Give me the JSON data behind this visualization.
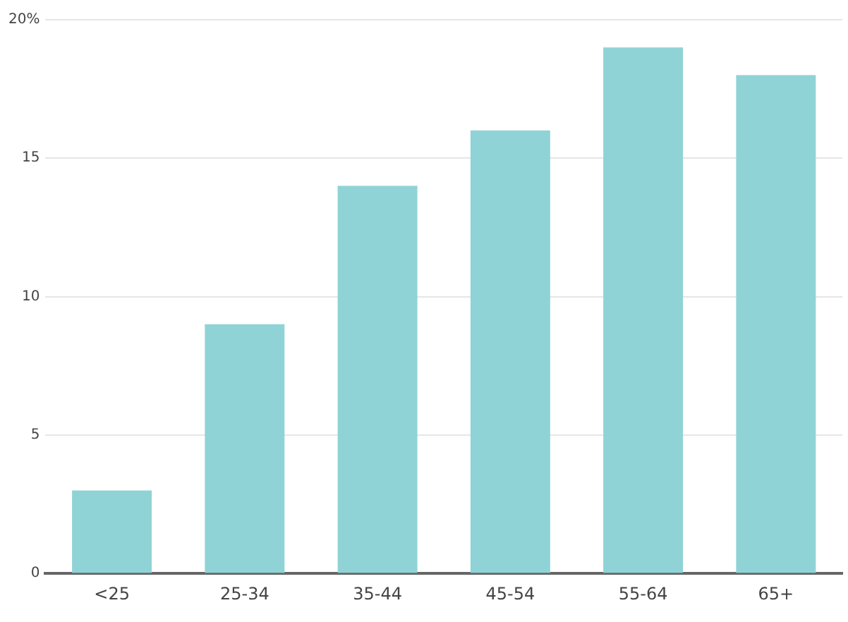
{
  "chart_data": {
    "type": "bar",
    "categories": [
      "<25",
      "25-34",
      "35-44",
      "45-54",
      "55-64",
      "65+"
    ],
    "values": [
      3,
      9,
      14,
      16,
      19,
      18
    ],
    "color": "#8fd3d6",
    "ylim": [
      0,
      20
    ],
    "yticks": [
      0,
      5,
      10,
      15,
      {
        "value": 20,
        "label": "20%"
      }
    ],
    "grid": "y"
  }
}
